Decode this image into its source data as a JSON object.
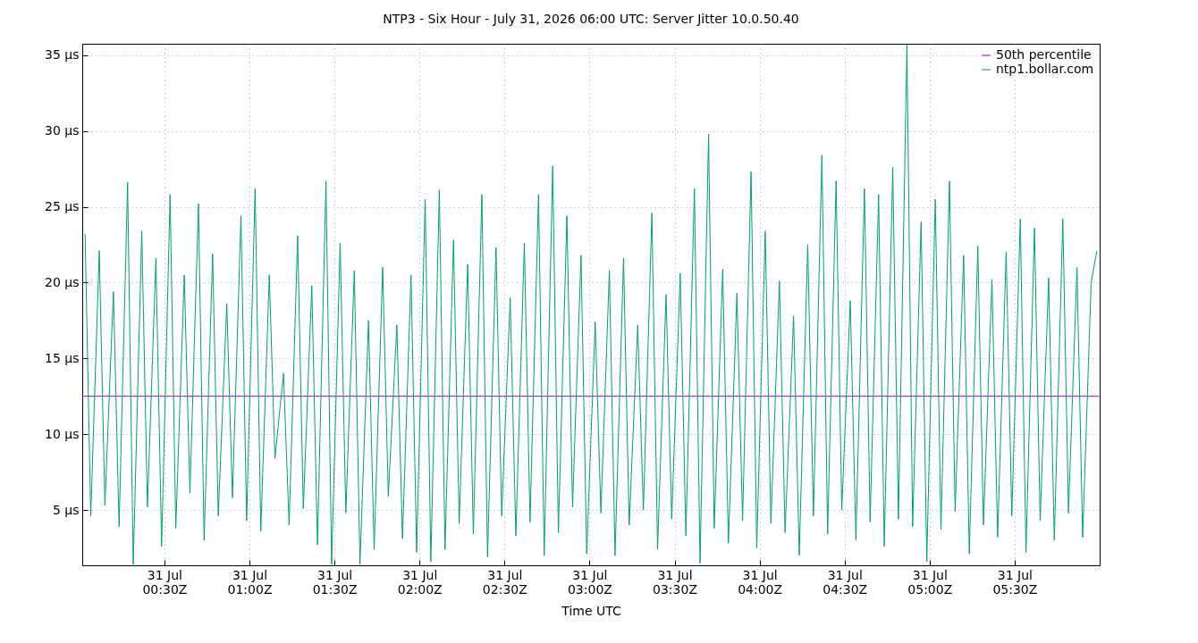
{
  "chart_data": {
    "type": "line",
    "title": "NTP3 - Six Hour - July 31, 2026 06:00 UTC: Server Jitter 10.0.50.40",
    "xlabel": "Time UTC",
    "xlim": [
      "2026-07-31T00:01",
      "2026-07-31T06:00"
    ],
    "xticks": [
      {
        "value": "2026-07-31T00:30",
        "label": "31 Jul\n00:30Z"
      },
      {
        "value": "2026-07-31T01:00",
        "label": "31 Jul\n01:00Z"
      },
      {
        "value": "2026-07-31T01:30",
        "label": "31 Jul\n01:30Z"
      },
      {
        "value": "2026-07-31T02:00",
        "label": "31 Jul\n02:00Z"
      },
      {
        "value": "2026-07-31T02:30",
        "label": "31 Jul\n02:30Z"
      },
      {
        "value": "2026-07-31T03:00",
        "label": "31 Jul\n03:00Z"
      },
      {
        "value": "2026-07-31T03:30",
        "label": "31 Jul\n03:30Z"
      },
      {
        "value": "2026-07-31T04:00",
        "label": "31 Jul\n04:00Z"
      },
      {
        "value": "2026-07-31T04:30",
        "label": "31 Jul\n04:30Z"
      },
      {
        "value": "2026-07-31T05:00",
        "label": "31 Jul\n05:00Z"
      },
      {
        "value": "2026-07-31T05:30",
        "label": "31 Jul\n05:30Z"
      }
    ],
    "ylim": [
      1.35,
      35.75
    ],
    "yticks": [
      {
        "value": 5,
        "label": "5 µs"
      },
      {
        "value": 10,
        "label": "10 µs"
      },
      {
        "value": 15,
        "label": "15 µs"
      },
      {
        "value": 20,
        "label": "20 µs"
      },
      {
        "value": 25,
        "label": "25 µs"
      },
      {
        "value": 30,
        "label": "30 µs"
      },
      {
        "value": 35,
        "label": "35 µs"
      }
    ],
    "grid": true,
    "legend": "top right",
    "series": [
      {
        "name": "50th percentile",
        "color": "#9400d3",
        "x": [
          "2026-07-31T00:01",
          "2026-07-31T06:00"
        ],
        "values": [
          12.5,
          12.5
        ]
      },
      {
        "name": "ntp1.bollar.com",
        "color": "#009e73",
        "x": [
          "2026-07-31T00:02",
          "2026-07-31T00:04",
          "2026-07-31T00:07",
          "2026-07-31T00:09",
          "2026-07-31T00:12",
          "2026-07-31T00:14",
          "2026-07-31T00:17",
          "2026-07-31T00:19",
          "2026-07-31T00:22",
          "2026-07-31T00:24",
          "2026-07-31T00:27",
          "2026-07-31T00:29",
          "2026-07-31T00:32",
          "2026-07-31T00:34",
          "2026-07-31T00:37",
          "2026-07-31T00:39",
          "2026-07-31T00:42",
          "2026-07-31T00:44",
          "2026-07-31T00:47",
          "2026-07-31T00:49",
          "2026-07-31T00:52",
          "2026-07-31T00:54",
          "2026-07-31T00:57",
          "2026-07-31T00:59",
          "2026-07-31T01:02",
          "2026-07-31T01:04",
          "2026-07-31T01:07",
          "2026-07-31T01:09",
          "2026-07-31T01:12",
          "2026-07-31T01:14",
          "2026-07-31T01:17",
          "2026-07-31T01:19",
          "2026-07-31T01:22",
          "2026-07-31T01:24",
          "2026-07-31T01:27",
          "2026-07-31T01:29",
          "2026-07-31T01:32",
          "2026-07-31T01:34",
          "2026-07-31T01:37",
          "2026-07-31T01:39",
          "2026-07-31T01:42",
          "2026-07-31T01:44",
          "2026-07-31T01:47",
          "2026-07-31T01:49",
          "2026-07-31T01:52",
          "2026-07-31T01:54",
          "2026-07-31T01:57",
          "2026-07-31T01:59",
          "2026-07-31T02:02",
          "2026-07-31T02:04",
          "2026-07-31T02:07",
          "2026-07-31T02:09",
          "2026-07-31T02:12",
          "2026-07-31T02:14",
          "2026-07-31T02:17",
          "2026-07-31T02:19",
          "2026-07-31T02:22",
          "2026-07-31T02:24",
          "2026-07-31T02:27",
          "2026-07-31T02:29",
          "2026-07-31T02:32",
          "2026-07-31T02:34",
          "2026-07-31T02:37",
          "2026-07-31T02:39",
          "2026-07-31T02:42",
          "2026-07-31T02:44",
          "2026-07-31T02:47",
          "2026-07-31T02:49",
          "2026-07-31T02:52",
          "2026-07-31T02:54",
          "2026-07-31T02:57",
          "2026-07-31T02:59",
          "2026-07-31T03:02",
          "2026-07-31T03:04",
          "2026-07-31T03:07",
          "2026-07-31T03:09",
          "2026-07-31T03:12",
          "2026-07-31T03:14",
          "2026-07-31T03:17",
          "2026-07-31T03:19",
          "2026-07-31T03:22",
          "2026-07-31T03:24",
          "2026-07-31T03:27",
          "2026-07-31T03:29",
          "2026-07-31T03:32",
          "2026-07-31T03:34",
          "2026-07-31T03:37",
          "2026-07-31T03:39",
          "2026-07-31T03:42",
          "2026-07-31T03:44",
          "2026-07-31T03:47",
          "2026-07-31T03:49",
          "2026-07-31T03:52",
          "2026-07-31T03:54",
          "2026-07-31T03:57",
          "2026-07-31T03:59",
          "2026-07-31T04:02",
          "2026-07-31T04:04",
          "2026-07-31T04:07",
          "2026-07-31T04:09",
          "2026-07-31T04:12",
          "2026-07-31T04:14",
          "2026-07-31T04:17",
          "2026-07-31T04:19",
          "2026-07-31T04:22",
          "2026-07-31T04:24",
          "2026-07-31T04:27",
          "2026-07-31T04:29",
          "2026-07-31T04:32",
          "2026-07-31T04:34",
          "2026-07-31T04:37",
          "2026-07-31T04:39",
          "2026-07-31T04:42",
          "2026-07-31T04:44",
          "2026-07-31T04:47",
          "2026-07-31T04:49",
          "2026-07-31T04:52",
          "2026-07-31T04:54",
          "2026-07-31T04:57",
          "2026-07-31T04:59",
          "2026-07-31T05:02",
          "2026-07-31T05:04",
          "2026-07-31T05:07",
          "2026-07-31T05:09",
          "2026-07-31T05:12",
          "2026-07-31T05:14",
          "2026-07-31T05:17",
          "2026-07-31T05:19",
          "2026-07-31T05:22",
          "2026-07-31T05:24",
          "2026-07-31T05:27",
          "2026-07-31T05:29",
          "2026-07-31T05:32",
          "2026-07-31T05:34",
          "2026-07-31T05:37",
          "2026-07-31T05:39",
          "2026-07-31T05:42",
          "2026-07-31T05:44",
          "2026-07-31T05:47",
          "2026-07-31T05:49",
          "2026-07-31T05:52",
          "2026-07-31T05:54",
          "2026-07-31T05:57",
          "2026-07-31T05:59"
        ],
        "values": [
          23.2,
          4.6,
          22.1,
          5.3,
          19.4,
          3.9,
          26.6,
          1.4,
          23.4,
          5.2,
          21.6,
          2.6,
          25.8,
          3.8,
          20.5,
          6.1,
          25.2,
          3.0,
          21.9,
          4.6,
          18.6,
          5.8,
          24.4,
          4.3,
          26.2,
          3.6,
          20.5,
          8.4,
          14.0,
          4.0,
          23.1,
          5.1,
          19.8,
          2.7,
          26.7,
          1.4,
          22.6,
          4.8,
          20.8,
          1.4,
          17.5,
          2.4,
          21.0,
          5.9,
          17.2,
          3.1,
          20.5,
          2.2,
          25.5,
          1.6,
          26.1,
          2.4,
          22.8,
          4.1,
          21.2,
          3.4,
          25.8,
          1.9,
          22.3,
          4.6,
          19.0,
          3.3,
          22.6,
          4.2,
          25.8,
          2.0,
          27.7,
          3.5,
          24.4,
          5.2,
          21.8,
          2.1,
          17.4,
          4.8,
          20.8,
          2.0,
          21.6,
          4.0,
          17.2,
          5.0,
          24.6,
          2.4,
          19.2,
          4.4,
          20.6,
          3.3,
          26.2,
          1.5,
          29.8,
          3.8,
          20.9,
          2.8,
          19.3,
          4.3,
          27.3,
          2.5,
          23.4,
          4.1,
          20.1,
          3.5,
          17.8,
          2.0,
          22.5,
          4.6,
          28.4,
          3.4,
          26.7,
          5.0,
          18.8,
          3.0,
          26.2,
          4.2,
          25.8,
          2.6,
          27.6,
          4.4,
          35.7,
          3.9,
          24.0,
          1.6,
          25.5,
          3.7,
          26.7,
          4.9,
          21.8,
          2.1,
          22.4,
          4.0,
          20.2,
          3.2,
          22.0,
          4.6,
          24.2,
          2.2,
          23.6,
          4.3,
          20.3,
          3.0,
          24.2,
          4.8,
          21.0,
          3.2,
          20.0,
          22.1
        ]
      }
    ]
  }
}
